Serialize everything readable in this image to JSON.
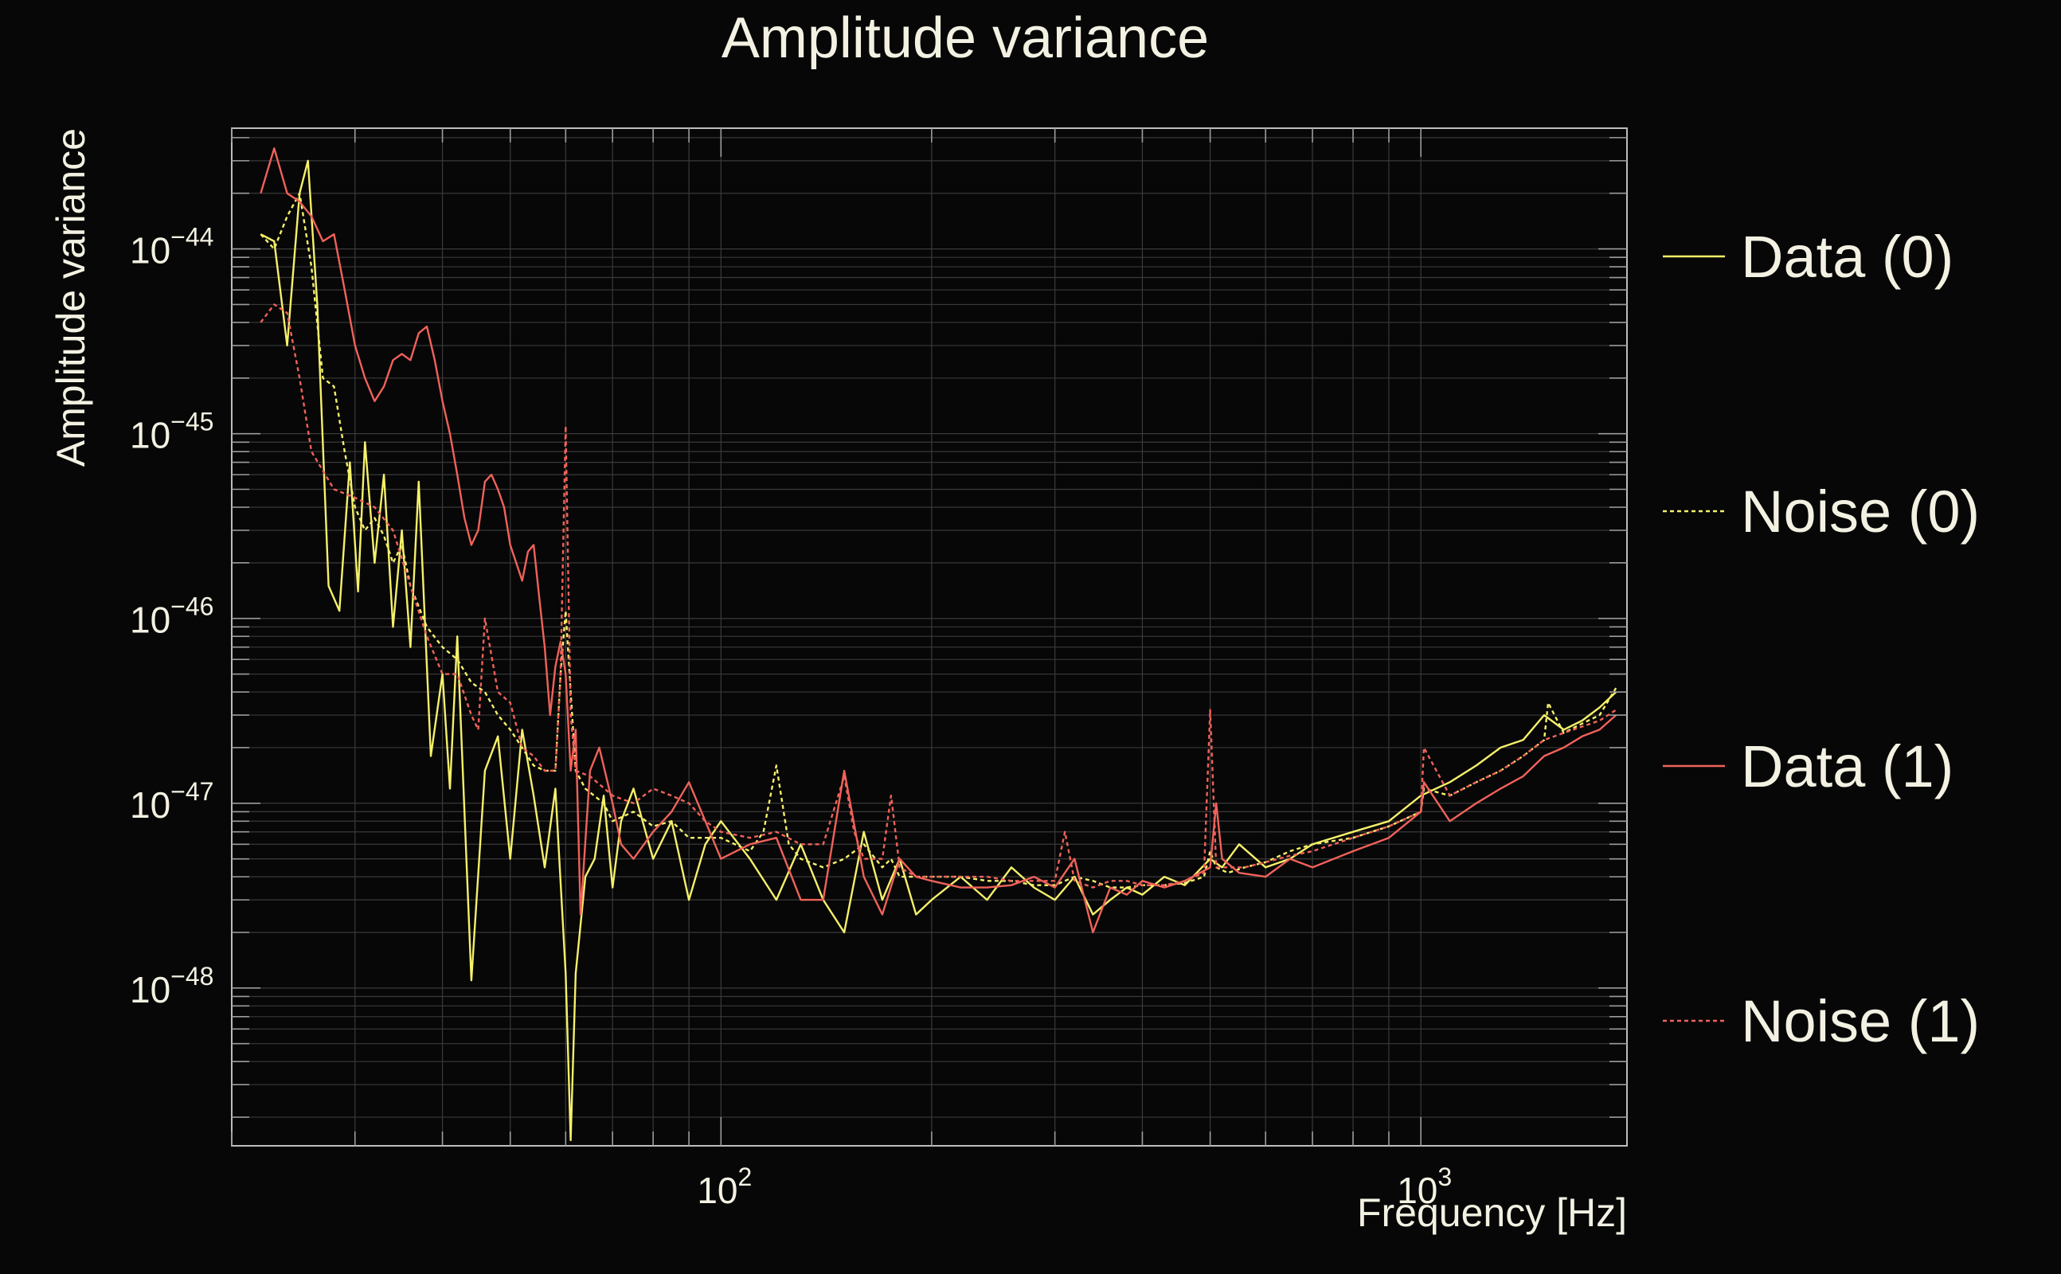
{
  "chart_data": {
    "type": "line",
    "title": "Amplitude variance",
    "xlabel": "Frequency [Hz]",
    "ylabel": "Amplitude variance",
    "x_scale": "log",
    "y_scale": "log",
    "xlim": [
      20,
      1970
    ],
    "ylim": [
      1.4e-49,
      4.5e-44
    ],
    "grid": true,
    "legend_position": "right",
    "x_ticks": [
      {
        "value": 100,
        "base": "10",
        "exp": "2"
      },
      {
        "value": 1000,
        "base": "10",
        "exp": "3"
      }
    ],
    "y_ticks": [
      {
        "value": 1e-44,
        "base": "10",
        "exp": "−44"
      },
      {
        "value": 1e-45,
        "base": "10",
        "exp": "−45"
      },
      {
        "value": 1e-46,
        "base": "10",
        "exp": "−46"
      },
      {
        "value": 1e-47,
        "base": "10",
        "exp": "−47"
      },
      {
        "value": 1e-48,
        "base": "10",
        "exp": "−48"
      }
    ],
    "series": [
      {
        "name": "Data (0)",
        "color": "#f5f06a",
        "style": "solid",
        "x": [
          22,
          23,
          24,
          25,
          25.7,
          26.5,
          27.5,
          28.5,
          29.5,
          30.3,
          31,
          32,
          33,
          34,
          35,
          36,
          37,
          38.5,
          40,
          41,
          42,
          44,
          46,
          48,
          50,
          52,
          54,
          56,
          58,
          60,
          61,
          62,
          64,
          66,
          68,
          70,
          72,
          75,
          80,
          85,
          90,
          95,
          100,
          110,
          120,
          130,
          140,
          150,
          160,
          170,
          180,
          190,
          200,
          220,
          240,
          260,
          280,
          300,
          320,
          340,
          360,
          380,
          400,
          430,
          460,
          500,
          520,
          550,
          600,
          650,
          700,
          800,
          900,
          1000,
          1100,
          1200,
          1300,
          1400,
          1500,
          1600,
          1700,
          1800,
          1900
        ],
        "y": [
          1.2e-44,
          1.1e-44,
          3e-45,
          2e-44,
          3e-44,
          5e-45,
          1.5e-46,
          1.1e-46,
          7e-46,
          1.4e-46,
          9e-46,
          2e-46,
          6e-46,
          9e-47,
          3e-46,
          7e-47,
          5.5e-46,
          1.8e-47,
          5e-47,
          1.2e-47,
          8e-47,
          1.1e-48,
          1.5e-47,
          2.3e-47,
          5e-48,
          2.5e-47,
          1.1e-47,
          4.5e-48,
          1.2e-47,
          1.2e-48,
          1.5e-49,
          1.2e-48,
          4e-48,
          5e-48,
          1.1e-47,
          3.5e-48,
          8e-48,
          1.2e-47,
          5e-48,
          8e-48,
          3e-48,
          6e-48,
          8e-48,
          5e-48,
          3e-48,
          6e-48,
          3e-48,
          2e-48,
          7e-48,
          3e-48,
          5e-48,
          2.5e-48,
          3e-48,
          4e-48,
          3e-48,
          4.5e-48,
          3.5e-48,
          3e-48,
          4e-48,
          2.5e-48,
          3e-48,
          3.5e-48,
          3.2e-48,
          4e-48,
          3.6e-48,
          5e-48,
          4.5e-48,
          6e-48,
          4.5e-48,
          5e-48,
          6e-48,
          7e-48,
          8e-48,
          1.1e-47,
          1.3e-47,
          1.6e-47,
          2e-47,
          2.2e-47,
          3e-47,
          2.5e-47,
          2.8e-47,
          3.3e-47,
          4e-47
        ]
      },
      {
        "name": "Noise (0)",
        "color": "#f5f06a",
        "style": "dashed",
        "x": [
          22,
          23,
          24,
          25,
          26,
          27,
          28,
          29,
          30,
          31,
          32,
          33,
          34,
          35,
          36,
          38,
          40,
          42,
          44,
          46,
          48,
          50,
          52,
          54,
          56,
          58,
          59,
          60,
          61,
          62,
          64,
          68,
          70,
          75,
          80,
          85,
          90,
          95,
          100,
          110,
          115,
          120,
          125,
          130,
          140,
          150,
          160,
          170,
          175,
          180,
          190,
          200,
          220,
          240,
          260,
          280,
          300,
          320,
          340,
          360,
          380,
          400,
          430,
          460,
          490,
          500,
          510,
          530,
          560,
          600,
          650,
          700,
          800,
          900,
          1000,
          1010,
          1100,
          1200,
          1300,
          1400,
          1500,
          1520,
          1600,
          1700,
          1800,
          1900
        ],
        "y": [
          1.2e-44,
          1e-44,
          1.5e-44,
          2e-44,
          8e-45,
          2e-45,
          1.8e-45,
          8e-46,
          4e-46,
          3e-46,
          3.5e-46,
          2.8e-46,
          2e-46,
          2.5e-46,
          1.5e-46,
          9e-47,
          7e-47,
          6e-47,
          4.5e-47,
          4e-47,
          3e-47,
          2.5e-47,
          2e-47,
          1.6e-47,
          1.5e-47,
          1.5e-47,
          5e-47,
          1.1e-46,
          4e-47,
          1.5e-47,
          1.2e-47,
          1e-47,
          8e-48,
          9e-48,
          7.5e-48,
          8e-48,
          6.5e-48,
          6.5e-48,
          6.5e-48,
          5.5e-48,
          7e-48,
          1.6e-47,
          6e-48,
          5e-48,
          4.5e-48,
          5e-48,
          6e-48,
          4.5e-48,
          5e-48,
          4e-48,
          4e-48,
          4e-48,
          4e-48,
          3.8e-48,
          3.8e-48,
          3.6e-48,
          3.6e-48,
          4e-48,
          3.8e-48,
          3.5e-48,
          3.5e-48,
          3.6e-48,
          3.6e-48,
          3.7e-48,
          4e-48,
          5.5e-48,
          4.5e-48,
          4.2e-48,
          4.5e-48,
          4.8e-48,
          5.5e-48,
          6e-48,
          6.5e-48,
          7.5e-48,
          9e-48,
          1.2e-47,
          1.1e-47,
          1.3e-47,
          1.5e-47,
          1.8e-47,
          2.2e-47,
          3.5e-47,
          2.4e-47,
          2.7e-47,
          3e-47,
          4.2e-47
        ]
      },
      {
        "name": "Data (1)",
        "color": "#f0625a",
        "style": "solid",
        "x": [
          22,
          23,
          24,
          25,
          26,
          27,
          28,
          29,
          30,
          31,
          32,
          33,
          34,
          35,
          36,
          37,
          38,
          39,
          40,
          41,
          42,
          43,
          44,
          45,
          46,
          47,
          48,
          49,
          50,
          52,
          53,
          54,
          55,
          56,
          57,
          58,
          59,
          60,
          61,
          62,
          63,
          65,
          67,
          70,
          72,
          75,
          80,
          85,
          90,
          95,
          100,
          110,
          120,
          130,
          140,
          150,
          160,
          170,
          180,
          190,
          200,
          220,
          240,
          260,
          280,
          300,
          320,
          340,
          360,
          380,
          400,
          430,
          460,
          500,
          510,
          520,
          550,
          600,
          650,
          700,
          800,
          900,
          1000,
          1010,
          1100,
          1200,
          1300,
          1400,
          1500,
          1600,
          1700,
          1800,
          1900
        ],
        "y": [
          2e-44,
          3.5e-44,
          2e-44,
          1.8e-44,
          1.5e-44,
          1.1e-44,
          1.2e-44,
          6e-45,
          3e-45,
          2e-45,
          1.5e-45,
          1.8e-45,
          2.5e-45,
          2.7e-45,
          2.5e-45,
          3.5e-45,
          3.8e-45,
          2.5e-45,
          1.5e-45,
          1e-45,
          6e-46,
          3.5e-46,
          2.5e-46,
          3e-46,
          5.5e-46,
          6e-46,
          5e-46,
          4e-46,
          2.5e-46,
          1.6e-46,
          2.3e-46,
          2.5e-46,
          1.3e-46,
          7e-47,
          3e-47,
          5.5e-47,
          7.5e-47,
          5e-47,
          1.5e-47,
          2.5e-47,
          2.5e-48,
          1.5e-47,
          2e-47,
          1e-47,
          6e-48,
          5e-48,
          7e-48,
          9e-48,
          1.3e-47,
          8e-48,
          5e-48,
          6e-48,
          6.5e-48,
          3e-48,
          3e-48,
          1.5e-47,
          4e-48,
          2.5e-48,
          5e-48,
          4e-48,
          3.8e-48,
          3.5e-48,
          3.5e-48,
          3.6e-48,
          4e-48,
          3.5e-48,
          5e-48,
          2e-48,
          3.5e-48,
          3.2e-48,
          3.8e-48,
          3.5e-48,
          3.8e-48,
          4.5e-48,
          1e-47,
          5e-48,
          4.2e-48,
          4e-48,
          5e-48,
          4.5e-48,
          5.5e-48,
          6.5e-48,
          9e-48,
          1.3e-47,
          8e-48,
          1e-47,
          1.2e-47,
          1.4e-47,
          1.8e-47,
          2e-47,
          2.3e-47,
          2.5e-47,
          3e-47
        ]
      },
      {
        "name": "Noise (1)",
        "color": "#f0625a",
        "style": "dashed",
        "x": [
          22,
          23,
          24,
          25,
          26,
          28,
          30,
          32,
          34,
          36,
          38,
          40,
          42,
          44,
          45,
          46,
          48,
          50,
          52,
          54,
          56,
          58,
          59,
          60,
          61,
          62,
          65,
          70,
          75,
          80,
          85,
          90,
          95,
          100,
          110,
          120,
          130,
          140,
          150,
          155,
          160,
          170,
          175,
          180,
          190,
          200,
          220,
          240,
          260,
          280,
          300,
          310,
          320,
          340,
          360,
          380,
          400,
          430,
          460,
          490,
          500,
          510,
          530,
          560,
          600,
          650,
          700,
          800,
          900,
          1000,
          1010,
          1100,
          1200,
          1300,
          1400,
          1500,
          1600,
          1700,
          1800,
          1900
        ],
        "y": [
          4e-45,
          5e-45,
          4.5e-45,
          2e-45,
          8e-46,
          5e-46,
          4.5e-46,
          4e-46,
          3e-46,
          1.5e-46,
          8e-47,
          5e-47,
          5e-47,
          3e-47,
          2.5e-47,
          1e-46,
          4e-47,
          3.5e-47,
          2e-47,
          1.8e-47,
          1.5e-47,
          1.5e-47,
          5e-47,
          1.1e-45,
          3e-47,
          1.5e-47,
          1.4e-47,
          1.1e-47,
          1e-47,
          1.2e-47,
          1.1e-47,
          1e-47,
          8e-48,
          7e-48,
          6.5e-48,
          7e-48,
          6e-48,
          6e-48,
          1.4e-47,
          7e-48,
          5e-48,
          5e-48,
          1.1e-47,
          4.5e-48,
          4e-48,
          4e-48,
          4e-48,
          4e-48,
          3.8e-48,
          3.8e-48,
          3.8e-48,
          7e-48,
          3.8e-48,
          3.5e-48,
          3.8e-48,
          3.8e-48,
          3.6e-48,
          3.6e-48,
          3.8e-48,
          4.2e-48,
          3.2e-47,
          4.5e-48,
          4.5e-48,
          4.5e-48,
          4.8e-48,
          5.2e-48,
          5.5e-48,
          6.5e-48,
          7.5e-48,
          9e-48,
          2e-47,
          1.1e-47,
          1.3e-47,
          1.5e-47,
          1.8e-47,
          2.2e-47,
          2.4e-47,
          2.6e-47,
          2.8e-47,
          3.2e-47
        ]
      }
    ]
  }
}
